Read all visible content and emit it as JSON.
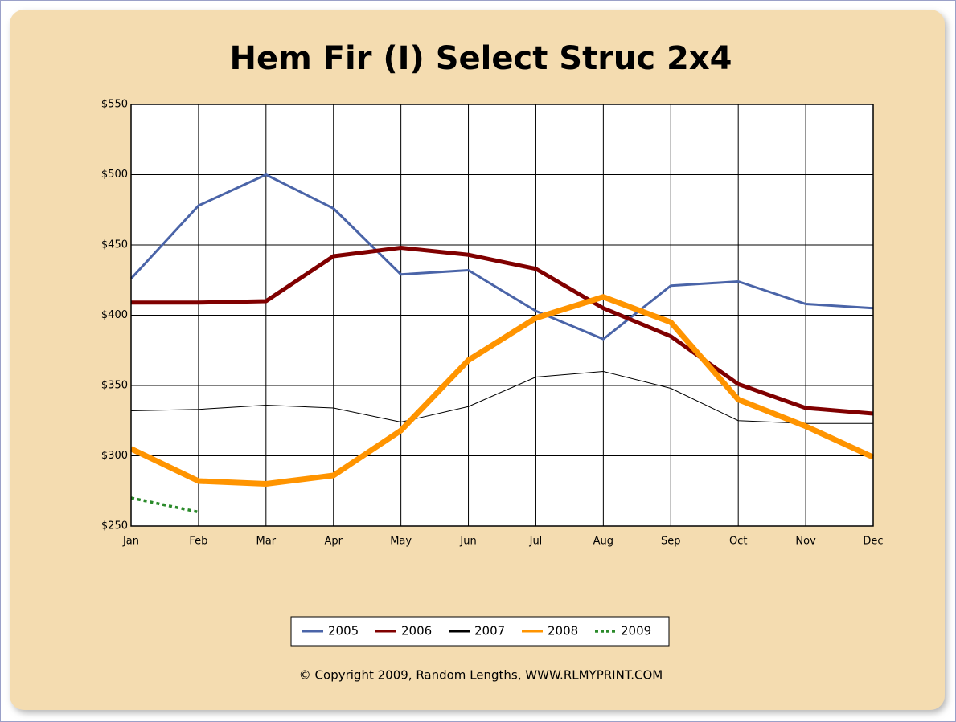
{
  "chart_data": {
    "type": "line",
    "title": "Hem Fir (I) Select Struc 2x4",
    "categories": [
      "Jan",
      "Feb",
      "Mar",
      "Apr",
      "May",
      "Jun",
      "Jul",
      "Aug",
      "Sep",
      "Oct",
      "Nov",
      "Dec"
    ],
    "series": [
      {
        "name": "2005",
        "color": "#4a64a8",
        "values": [
          426,
          478,
          500,
          476,
          429,
          432,
          403,
          383,
          421,
          424,
          408,
          405
        ]
      },
      {
        "name": "2006",
        "color": "#800000",
        "values": [
          409,
          409,
          410,
          442,
          448,
          443,
          433,
          405,
          385,
          351,
          334,
          330
        ]
      },
      {
        "name": "2007",
        "color": "#000000",
        "values": [
          332,
          333,
          336,
          334,
          324,
          335,
          356,
          360,
          348,
          325,
          323,
          323
        ]
      },
      {
        "name": "2008",
        "color": "#ff9400",
        "values": [
          305,
          282,
          280,
          286,
          318,
          368,
          398,
          413,
          395,
          340,
          321,
          299
        ]
      },
      {
        "name": "2009",
        "color": "#2a8a2a",
        "style": "dotted",
        "values": [
          270,
          260,
          null,
          null,
          null,
          null,
          null,
          null,
          null,
          null,
          null,
          null
        ]
      }
    ],
    "ylim": [
      250,
      550
    ],
    "yticks": [
      {
        "value": 250,
        "label": "$250"
      },
      {
        "value": 300,
        "label": "$300"
      },
      {
        "value": 350,
        "label": "$350"
      },
      {
        "value": 400,
        "label": "$400"
      },
      {
        "value": 450,
        "label": "$450"
      },
      {
        "value": 500,
        "label": "$500"
      },
      {
        "value": 550,
        "label": "$550"
      }
    ],
    "grid": true,
    "legend": "bottom",
    "footnote": "© Copyright 2009, Random Lengths, WWW.RLMYPRINT.COM"
  }
}
